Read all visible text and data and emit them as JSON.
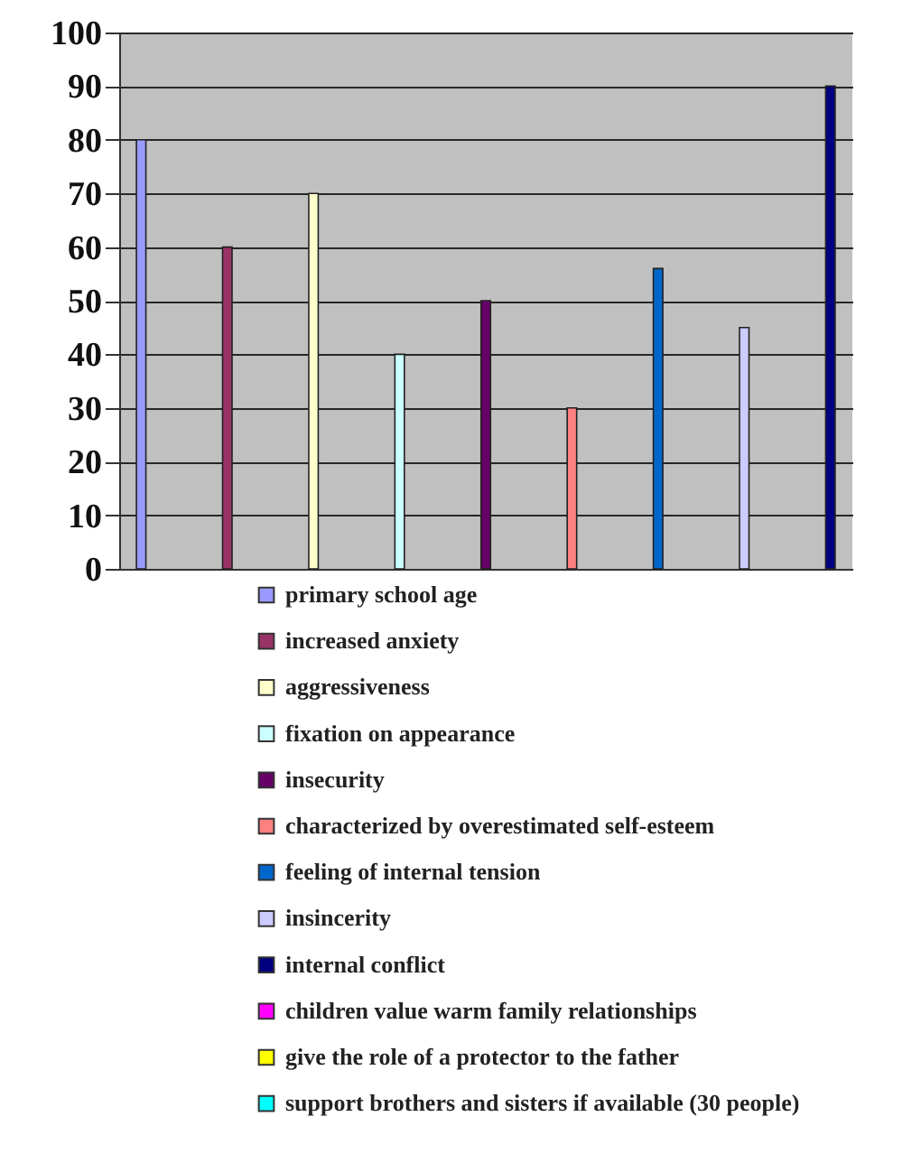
{
  "chart_data": {
    "type": "bar",
    "categories": [
      null
    ],
    "series": [
      {
        "name": "primary school age",
        "color": "#9999ff",
        "values": [
          80
        ]
      },
      {
        "name": "increased anxiety",
        "color": "#993366",
        "values": [
          60
        ]
      },
      {
        "name": "aggressiveness",
        "color": "#ffffcc",
        "values": [
          70
        ]
      },
      {
        "name": "fixation on appearance",
        "color": "#ccffff",
        "values": [
          40
        ]
      },
      {
        "name": "insecurity",
        "color": "#660066",
        "values": [
          50
        ]
      },
      {
        "name": "characterized by overestimated self-esteem",
        "color": "#ff8080",
        "values": [
          30
        ]
      },
      {
        "name": "feeling of internal tension",
        "color": "#0066cc",
        "values": [
          56
        ]
      },
      {
        "name": "insincerity",
        "color": "#ccccff",
        "values": [
          45
        ]
      },
      {
        "name": "internal conflict",
        "color": "#000080",
        "values": [
          90
        ]
      },
      {
        "name": "children value warm family relationships",
        "color": "#ff00ff",
        "values": [
          null
        ]
      },
      {
        "name": "give the role of a protector to the father",
        "color": "#ffff00",
        "values": [
          null
        ]
      },
      {
        "name": "support brothers and sisters if available (30 people)",
        "color": "#00ffff",
        "values": [
          null
        ]
      }
    ],
    "ylim": [
      0,
      100
    ],
    "yticks": [
      0,
      10,
      20,
      30,
      40,
      50,
      60,
      70,
      80,
      90,
      100
    ],
    "grid": "y",
    "legend": "bottom"
  }
}
